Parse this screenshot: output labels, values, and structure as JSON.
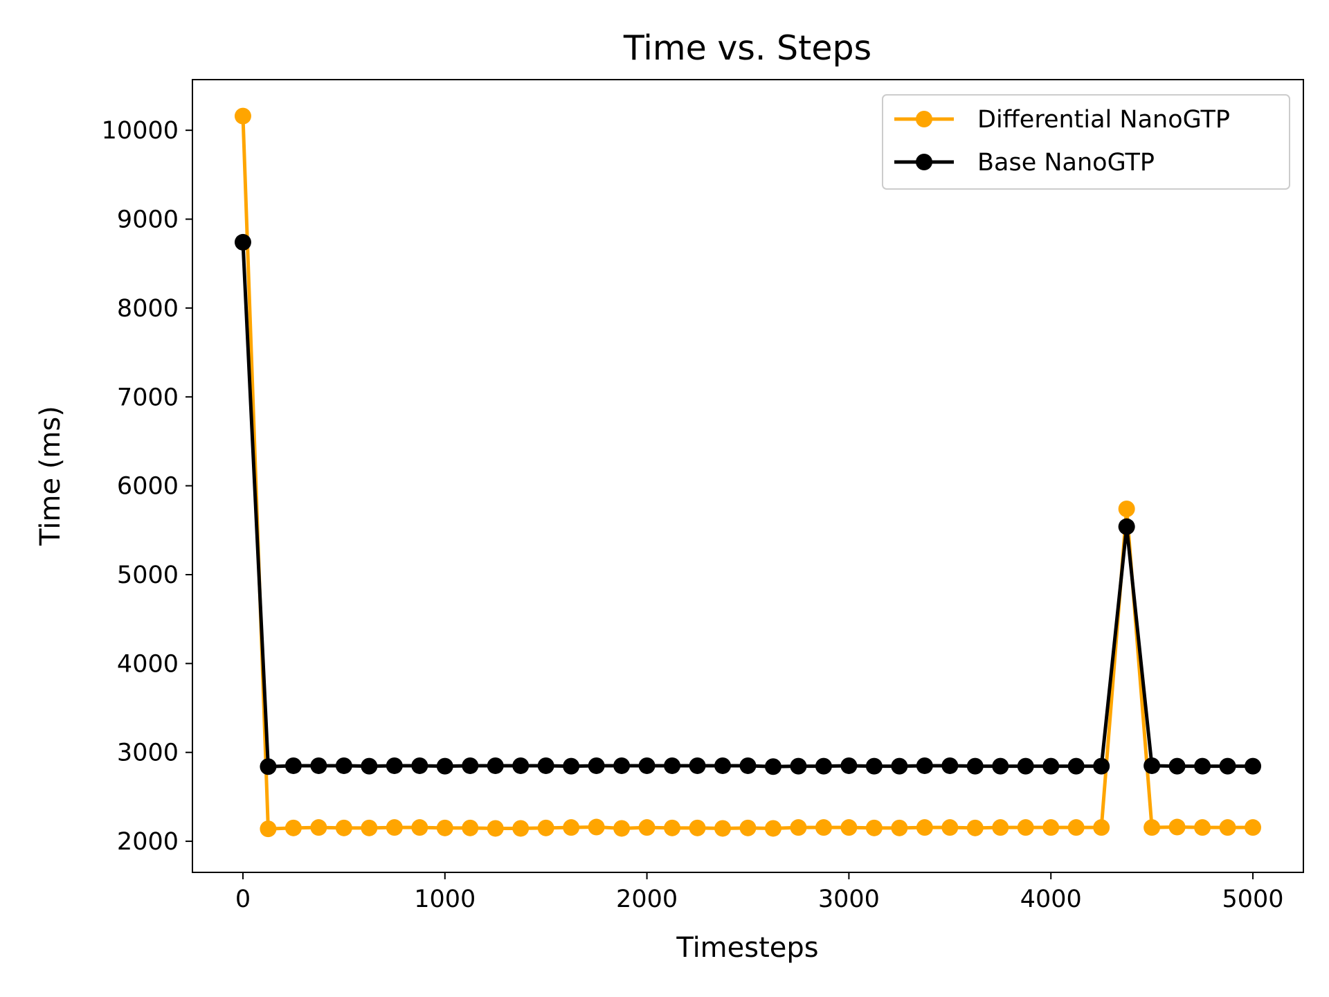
{
  "chart_data": {
    "type": "line",
    "title": "Time vs. Steps",
    "xlabel": "Timesteps",
    "ylabel": "Time (ms)",
    "xlim": [
      -250,
      5250
    ],
    "ylim": [
      1650,
      10570
    ],
    "xticks": [
      0,
      1000,
      2000,
      3000,
      4000,
      5000
    ],
    "yticks": [
      2000,
      3000,
      4000,
      5000,
      6000,
      7000,
      8000,
      9000,
      10000
    ],
    "grid": false,
    "legend_position": "top-right",
    "x": [
      0,
      125,
      250,
      375,
      500,
      625,
      750,
      875,
      1000,
      1125,
      1250,
      1375,
      1500,
      1625,
      1750,
      1875,
      2000,
      2125,
      2250,
      2375,
      2500,
      2625,
      2750,
      2875,
      3000,
      3125,
      3250,
      3375,
      3500,
      3625,
      3750,
      3875,
      4000,
      4125,
      4250,
      4375,
      4500,
      4625,
      4750,
      4875,
      5000
    ],
    "series": [
      {
        "name": "Differential NanoGTP",
        "color": "#ffa500",
        "marker": "circle",
        "values": [
          10160,
          2140,
          2150,
          2155,
          2150,
          2150,
          2155,
          2155,
          2150,
          2150,
          2145,
          2145,
          2150,
          2155,
          2160,
          2145,
          2155,
          2150,
          2150,
          2145,
          2150,
          2145,
          2155,
          2155,
          2155,
          2150,
          2150,
          2155,
          2155,
          2150,
          2155,
          2155,
          2155,
          2155,
          2155,
          5740,
          2155,
          2160,
          2155,
          2155,
          2155
        ]
      },
      {
        "name": "Base NanoGTP",
        "color": "#000000",
        "marker": "circle",
        "values": [
          8740,
          2840,
          2850,
          2850,
          2850,
          2845,
          2850,
          2850,
          2845,
          2850,
          2850,
          2850,
          2850,
          2845,
          2850,
          2850,
          2850,
          2850,
          2850,
          2850,
          2850,
          2840,
          2845,
          2845,
          2850,
          2845,
          2845,
          2850,
          2850,
          2845,
          2845,
          2845,
          2845,
          2845,
          2845,
          5540,
          2850,
          2845,
          2845,
          2845,
          2845
        ]
      }
    ]
  }
}
